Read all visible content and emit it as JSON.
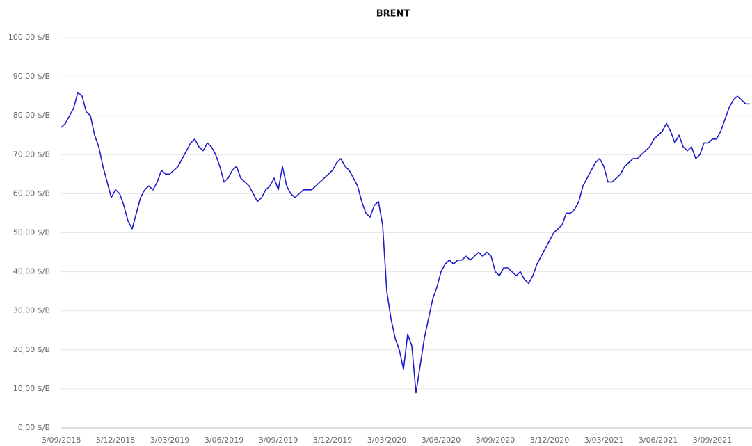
{
  "chart_data": {
    "type": "line",
    "title": "BRENT",
    "categories": [
      "3/09/2018",
      null,
      null,
      null,
      null,
      null,
      null,
      null,
      null,
      null,
      null,
      null,
      null,
      "3/12/2018",
      null,
      null,
      null,
      null,
      null,
      null,
      null,
      null,
      null,
      null,
      null,
      null,
      "3/03/2019",
      null,
      null,
      null,
      null,
      null,
      null,
      null,
      null,
      null,
      null,
      null,
      null,
      "3/06/2019",
      null,
      null,
      null,
      null,
      null,
      null,
      null,
      null,
      null,
      null,
      null,
      null,
      "3/09/2019",
      null,
      null,
      null,
      null,
      null,
      null,
      null,
      null,
      null,
      null,
      null,
      null,
      "3/12/2019",
      null,
      null,
      null,
      null,
      null,
      null,
      null,
      null,
      null,
      null,
      null,
      null,
      "3/03/2020",
      null,
      null,
      null,
      null,
      null,
      null,
      null,
      null,
      null,
      null,
      null,
      null,
      "3/06/2020",
      null,
      null,
      null,
      null,
      null,
      null,
      null,
      null,
      null,
      null,
      null,
      null,
      "3/09/2020",
      null,
      null,
      null,
      null,
      null,
      null,
      null,
      null,
      null,
      null,
      null,
      null,
      "3/12/2020",
      null,
      null,
      null,
      null,
      null,
      null,
      null,
      null,
      null,
      null,
      null,
      null,
      "3/03/2021",
      null,
      null,
      null,
      null,
      null,
      null,
      null,
      null,
      null,
      null,
      null,
      null,
      "3/06/2021",
      null,
      null,
      null,
      null,
      null,
      null,
      null,
      null,
      null,
      null,
      null,
      null,
      "3/09/2021",
      null,
      null,
      null,
      null,
      null,
      null,
      null,
      null,
      null
    ],
    "series": [
      {
        "name": "BRENT",
        "color": "#1c1cc8",
        "values": [
          77,
          78,
          80,
          82,
          86,
          85,
          81,
          80,
          75,
          72,
          67,
          63,
          59,
          61,
          60,
          57,
          53,
          51,
          55,
          59,
          61,
          62,
          61,
          63,
          66,
          65,
          65,
          66,
          67,
          69,
          71,
          73,
          74,
          72,
          71,
          73,
          72,
          70,
          67,
          63,
          64,
          66,
          67,
          64,
          63,
          62,
          60,
          58,
          59,
          61,
          62,
          64,
          61,
          67,
          62,
          60,
          59,
          60,
          61,
          61,
          61,
          62,
          63,
          64,
          65,
          66,
          68,
          69,
          67,
          66,
          64,
          62,
          58,
          55,
          54,
          57,
          58,
          52,
          35,
          28,
          23,
          20,
          15,
          24,
          21,
          9,
          16,
          23,
          28,
          33,
          36,
          40,
          42,
          43,
          42,
          43,
          43,
          44,
          43,
          44,
          45,
          44,
          45,
          44,
          40,
          39,
          41,
          41,
          40,
          39,
          40,
          38,
          37,
          39,
          42,
          44,
          46,
          48,
          50,
          51,
          52,
          55,
          55,
          56,
          58,
          62,
          64,
          66,
          68,
          69,
          67,
          63,
          63,
          64,
          65,
          67,
          68,
          69,
          69,
          70,
          71,
          72,
          74,
          75,
          76,
          78,
          76,
          73,
          75,
          72,
          71,
          72,
          69,
          70,
          73,
          73,
          74,
          74,
          76,
          79,
          82,
          84,
          85,
          84,
          83,
          83
        ]
      }
    ],
    "ylim": [
      0,
      100
    ],
    "yticks": [
      {
        "value": 0,
        "label": "0,00 $/B"
      },
      {
        "value": 10,
        "label": "10,00 $/B"
      },
      {
        "value": 20,
        "label": "20,00 $/B"
      },
      {
        "value": 30,
        "label": "30,00 $/B"
      },
      {
        "value": 40,
        "label": "40,00 $/B"
      },
      {
        "value": 50,
        "label": "50,00 $/B"
      },
      {
        "value": 60,
        "label": "60,00 $/B"
      },
      {
        "value": 70,
        "label": "70,00 $/B"
      },
      {
        "value": 80,
        "label": "80,00 $/B"
      },
      {
        "value": 90,
        "label": "90,00 $/B"
      },
      {
        "value": 100,
        "label": "100,00 $/B"
      }
    ],
    "grid": true
  }
}
